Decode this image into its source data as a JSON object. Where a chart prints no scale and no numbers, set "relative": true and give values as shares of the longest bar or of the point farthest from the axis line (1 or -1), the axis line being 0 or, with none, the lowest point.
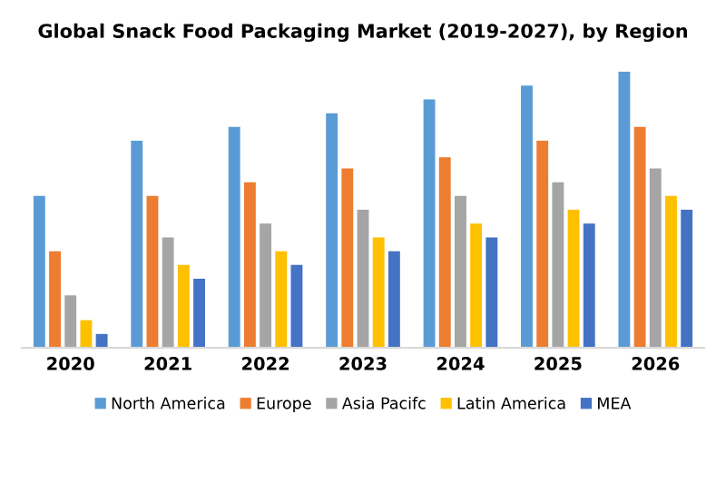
{
  "chart_data": {
    "type": "bar",
    "title": "Global Snack Food Packaging Market (2019-2027), by Region",
    "categories": [
      "2020",
      "2021",
      "2022",
      "2023",
      "2024",
      "2025",
      "2026"
    ],
    "relative": true,
    "legend": "bottom",
    "grid": false,
    "series": [
      {
        "name": "North America",
        "color": "#5b9bd5",
        "values": [
          0.55,
          0.75,
          0.8,
          0.85,
          0.9,
          0.95,
          1.0
        ]
      },
      {
        "name": "Europe",
        "color": "#ed7d31",
        "values": [
          0.35,
          0.55,
          0.6,
          0.65,
          0.69,
          0.75,
          0.8
        ]
      },
      {
        "name": "Asia Pacifc",
        "color": "#a5a5a5",
        "values": [
          0.19,
          0.4,
          0.45,
          0.5,
          0.55,
          0.6,
          0.65
        ]
      },
      {
        "name": "Latin America",
        "color": "#ffc000",
        "values": [
          0.1,
          0.3,
          0.35,
          0.4,
          0.45,
          0.5,
          0.55
        ]
      },
      {
        "name": "MEA",
        "color": "#4472c4",
        "values": [
          0.05,
          0.25,
          0.3,
          0.35,
          0.4,
          0.45,
          0.5
        ]
      }
    ]
  }
}
